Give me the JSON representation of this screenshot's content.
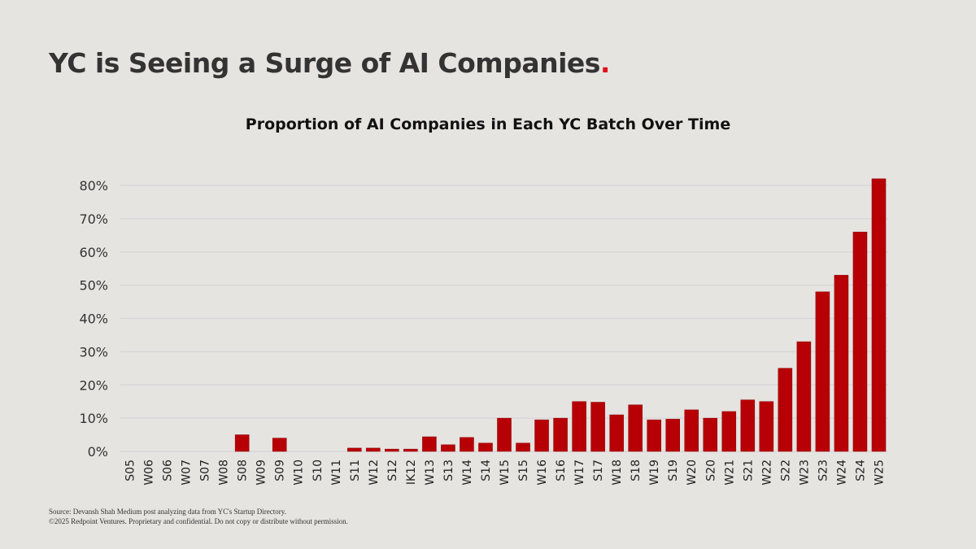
{
  "header": {
    "title": "YC is Seeing a Surge of AI Companies",
    "title_dot": "."
  },
  "colors": {
    "bar": "#b70005",
    "accent_dot": "#e0101a",
    "background": "#e5e4e1",
    "grid": "#d8d7d9"
  },
  "chart_data": {
    "type": "bar",
    "title": "Proportion of AI Companies in Each YC Batch Over Time",
    "xlabel": "",
    "ylabel": "",
    "ylim": [
      0,
      80
    ],
    "yticks": [
      "0%",
      "10%",
      "20%",
      "30%",
      "40%",
      "50%",
      "60%",
      "70%",
      "80%"
    ],
    "grid": true,
    "categories": [
      "S05",
      "W06",
      "S06",
      "W07",
      "S07",
      "W08",
      "S08",
      "W09",
      "S09",
      "W10",
      "S10",
      "W11",
      "S11",
      "W12",
      "S12",
      "IK12",
      "W13",
      "S13",
      "W14",
      "S14",
      "W15",
      "S15",
      "W16",
      "S16",
      "W17",
      "S17",
      "W18",
      "S18",
      "W19",
      "S19",
      "W20",
      "S20",
      "W21",
      "S21",
      "W22",
      "S22",
      "W23",
      "S23",
      "W24",
      "S24",
      "W25"
    ],
    "values": [
      0,
      0,
      0,
      0,
      0,
      0,
      5,
      0,
      4,
      0,
      0,
      0,
      1,
      1,
      0.7,
      0.7,
      4.4,
      2,
      4.2,
      2.5,
      10,
      2.5,
      9.5,
      10,
      15,
      14.8,
      11,
      14,
      9.5,
      9.7,
      12.5,
      10,
      12,
      15.5,
      15,
      25,
      33,
      48,
      53,
      66,
      82
    ]
  },
  "footer": {
    "source": "Source: Devansh Shah Medium post analyzing data from YC's Startup Directory.",
    "copyright": "©2025 Redpoint Ventures. Proprietary and confidential. Do not copy or distribute without permission."
  }
}
